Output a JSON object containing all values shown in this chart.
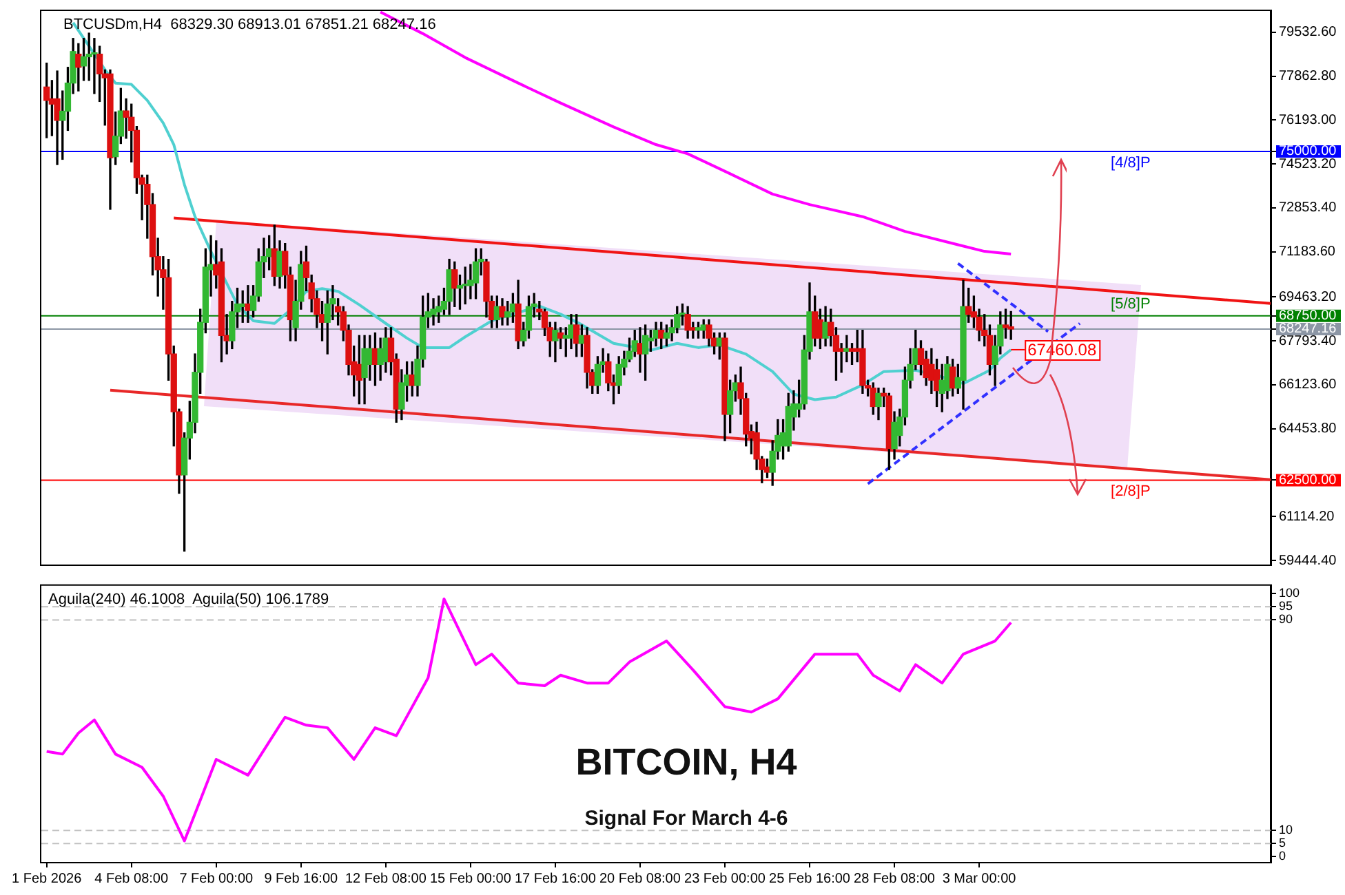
{
  "chart_data": [
    {
      "type": "candlestick",
      "title": "BTCUSDm,H4  68329.30 68913.01 67851.21 68247.16",
      "x": [
        "2026-02-01T16:00",
        "2026-02-01T20:00",
        "2026-02-02T00:00",
        "2026-02-02T04:00",
        "2026-02-02T08:00",
        "2026-02-02T12:00",
        "2026-02-02T16:00",
        "2026-02-02T20:00",
        "2026-02-03T00:00",
        "2026-02-03T04:00",
        "2026-02-03T08:00",
        "2026-02-03T12:00",
        "2026-02-03T16:00",
        "2026-02-03T20:00",
        "2026-02-04T00:00",
        "2026-02-04T04:00",
        "2026-02-04T08:00",
        "2026-02-04T12:00",
        "2026-02-04T16:00",
        "2026-02-04T20:00",
        "2026-02-05T00:00",
        "2026-02-05T04:00",
        "2026-02-05T08:00",
        "2026-02-05T12:00",
        "2026-02-05T16:00",
        "2026-02-05T20:00",
        "2026-02-06T00:00",
        "2026-02-06T04:00",
        "2026-02-06T08:00",
        "2026-02-06T12:00",
        "2026-02-06T16:00",
        "2026-02-06T20:00",
        "2026-02-07T00:00",
        "2026-02-07T04:00",
        "2026-02-07T08:00",
        "2026-02-07T12:00",
        "2026-02-07T16:00",
        "2026-02-07T20:00",
        "2026-02-08T00:00",
        "2026-02-08T04:00",
        "2026-02-08T08:00",
        "2026-02-08T12:00",
        "2026-02-08T16:00",
        "2026-02-08T20:00",
        "2026-02-09T00:00",
        "2026-02-09T04:00",
        "2026-02-09T08:00",
        "2026-02-09T12:00",
        "2026-02-09T16:00",
        "2026-02-09T20:00",
        "2026-02-10T00:00",
        "2026-02-10T04:00",
        "2026-02-10T08:00",
        "2026-02-10T12:00",
        "2026-02-10T16:00",
        "2026-02-10T20:00",
        "2026-02-11T00:00",
        "2026-02-11T04:00",
        "2026-02-11T08:00",
        "2026-02-11T12:00",
        "2026-02-11T16:00",
        "2026-02-11T20:00",
        "2026-02-12T00:00",
        "2026-02-12T04:00",
        "2026-02-12T08:00",
        "2026-02-12T12:00",
        "2026-02-12T16:00",
        "2026-02-12T20:00",
        "2026-02-13T00:00",
        "2026-02-13T04:00",
        "2026-02-13T08:00",
        "2026-02-13T12:00",
        "2026-02-13T16:00",
        "2026-02-13T20:00",
        "2026-02-14T00:00",
        "2026-02-14T04:00",
        "2026-02-14T08:00",
        "2026-02-14T12:00",
        "2026-02-14T16:00",
        "2026-02-14T20:00",
        "2026-02-15T00:00",
        "2026-02-15T04:00",
        "2026-02-15T08:00",
        "2026-02-15T12:00",
        "2026-02-15T16:00",
        "2026-02-15T20:00",
        "2026-02-16T00:00",
        "2026-02-16T04:00",
        "2026-02-16T08:00",
        "2026-02-16T12:00",
        "2026-02-16T16:00",
        "2026-02-16T20:00",
        "2026-02-17T00:00",
        "2026-02-17T04:00",
        "2026-02-17T08:00",
        "2026-02-17T12:00",
        "2026-02-17T16:00",
        "2026-02-17T20:00",
        "2026-02-18T00:00",
        "2026-02-18T04:00",
        "2026-02-18T08:00",
        "2026-02-18T12:00",
        "2026-02-18T16:00",
        "2026-02-18T20:00",
        "2026-02-19T00:00",
        "2026-02-19T04:00",
        "2026-02-19T08:00",
        "2026-02-19T12:00",
        "2026-02-19T16:00",
        "2026-02-19T20:00",
        "2026-02-20T00:00",
        "2026-02-20T04:00",
        "2026-02-20T08:00",
        "2026-02-20T12:00",
        "2026-02-20T16:00",
        "2026-02-20T20:00",
        "2026-02-21T00:00",
        "2026-02-21T04:00",
        "2026-02-21T08:00",
        "2026-02-21T12:00",
        "2026-02-21T16:00",
        "2026-02-21T20:00",
        "2026-02-22T00:00",
        "2026-02-22T04:00",
        "2026-02-22T08:00",
        "2026-02-22T12:00",
        "2026-02-22T16:00",
        "2026-02-22T20:00",
        "2026-02-23T00:00",
        "2026-02-23T04:00",
        "2026-02-23T08:00",
        "2026-02-23T12:00",
        "2026-02-23T16:00",
        "2026-02-23T20:00",
        "2026-02-24T00:00",
        "2026-02-24T04:00",
        "2026-02-24T08:00",
        "2026-02-24T12:00",
        "2026-02-24T16:00",
        "2026-02-24T20:00",
        "2026-02-25T00:00",
        "2026-02-25T04:00",
        "2026-02-25T08:00",
        "2026-02-25T12:00",
        "2026-02-25T16:00",
        "2026-02-25T20:00",
        "2026-02-26T00:00",
        "2026-02-26T04:00",
        "2026-02-26T08:00",
        "2026-02-26T12:00",
        "2026-02-26T16:00",
        "2026-02-26T20:00",
        "2026-02-27T00:00",
        "2026-02-27T04:00",
        "2026-02-27T08:00",
        "2026-02-27T12:00",
        "2026-02-27T16:00",
        "2026-02-27T20:00",
        "2026-02-28T00:00",
        "2026-02-28T04:00",
        "2026-02-28T08:00",
        "2026-02-28T12:00",
        "2026-02-28T16:00",
        "2026-02-28T20:00",
        "2026-03-01T00:00",
        "2026-03-01T04:00",
        "2026-03-01T08:00",
        "2026-03-01T12:00",
        "2026-03-01T16:00",
        "2026-03-01T20:00",
        "2026-03-02T00:00",
        "2026-03-02T04:00",
        "2026-03-02T08:00",
        "2026-03-02T12:00",
        "2026-03-02T16:00",
        "2026-03-02T20:00",
        "2026-03-03T00:00",
        "2026-03-03T04:00",
        "2026-03-03T08:00",
        "2026-03-03T12:00",
        "2026-03-03T16:00",
        "2026-03-03T20:00",
        "2026-03-04T00:00"
      ],
      "ohlc": [
        [
          77450,
          78360,
          75520,
          76940
        ],
        [
          77000,
          77700,
          75600,
          76800
        ],
        [
          77000,
          78060,
          74500,
          76180
        ],
        [
          76180,
          77300,
          74700,
          76530
        ],
        [
          76530,
          78200,
          75800,
          77600
        ],
        [
          77600,
          79300,
          77200,
          78800
        ],
        [
          78700,
          79100,
          77300,
          78200
        ],
        [
          78250,
          79300,
          77700,
          78600
        ],
        [
          78600,
          79500,
          77700,
          78700
        ],
        [
          78700,
          79300,
          77200,
          78750
        ],
        [
          78700,
          79000,
          76900,
          77950
        ],
        [
          77950,
          78100,
          76000,
          77800
        ],
        [
          77950,
          78100,
          72800,
          74760
        ],
        [
          74800,
          76500,
          74500,
          75580
        ],
        [
          75580,
          77400,
          75300,
          76540
        ],
        [
          76540,
          77000,
          75500,
          76300
        ],
        [
          76300,
          76800,
          74600,
          75800
        ],
        [
          75800,
          75950,
          73400,
          74000
        ],
        [
          74000,
          74100,
          72400,
          73750
        ],
        [
          73750,
          74100,
          71700,
          72980
        ],
        [
          72980,
          73400,
          70300,
          71000
        ],
        [
          71000,
          71700,
          69500,
          70500
        ],
        [
          70500,
          71000,
          69000,
          70200
        ],
        [
          70200,
          70900,
          66300,
          67300
        ],
        [
          67300,
          67600,
          63800,
          65100
        ],
        [
          65100,
          65200,
          62000,
          62700
        ],
        [
          62700,
          64300,
          59800,
          64100
        ],
        [
          64100,
          65500,
          63300,
          64700
        ],
        [
          64700,
          67300,
          64300,
          66600
        ],
        [
          66600,
          69000,
          65800,
          68500
        ],
        [
          68500,
          71300,
          68100,
          70600
        ],
        [
          70500,
          71800,
          69500,
          70700
        ],
        [
          70700,
          71600,
          69800,
          70300
        ],
        [
          70800,
          71300,
          67000,
          68000
        ],
        [
          68000,
          68800,
          67300,
          67800
        ],
        [
          67800,
          69300,
          67500,
          68900
        ],
        [
          68900,
          69800,
          68300,
          69200
        ],
        [
          69100,
          69700,
          68500,
          69200
        ],
        [
          69200,
          69900,
          68500,
          68950
        ],
        [
          68950,
          69900,
          68700,
          69500
        ],
        [
          69500,
          71300,
          69300,
          70800
        ],
        [
          70800,
          71700,
          70200,
          71000
        ],
        [
          71000,
          71800,
          70500,
          71300
        ],
        [
          71300,
          72200,
          69900,
          70250
        ],
        [
          70250,
          71600,
          69800,
          71200
        ],
        [
          71200,
          71500,
          69800,
          70300
        ],
        [
          70300,
          70600,
          67800,
          68600
        ],
        [
          68300,
          70100,
          67800,
          69300
        ],
        [
          69300,
          71200,
          69000,
          70700
        ],
        [
          70800,
          71400,
          69700,
          70200
        ],
        [
          70000,
          70300,
          68900,
          69400
        ],
        [
          69400,
          69700,
          68300,
          68800
        ],
        [
          68800,
          69300,
          67800,
          68500
        ],
        [
          68500,
          69700,
          67300,
          69200
        ],
        [
          69200,
          69900,
          68600,
          69400
        ],
        [
          69100,
          69400,
          68400,
          68900
        ],
        [
          68900,
          69100,
          67800,
          68200
        ],
        [
          68200,
          68400,
          66500,
          66900
        ],
        [
          67000,
          67600,
          65700,
          66500
        ],
        [
          66900,
          68000,
          65400,
          66300
        ],
        [
          66400,
          68000,
          65400,
          67500
        ],
        [
          66900,
          68000,
          66300,
          67500
        ],
        [
          67500,
          68100,
          66100,
          66900
        ],
        [
          66900,
          67900,
          66300,
          67500
        ],
        [
          67000,
          68300,
          66600,
          67900
        ],
        [
          67900,
          68300,
          66500,
          67000
        ],
        [
          67100,
          67300,
          64700,
          65200
        ],
        [
          65200,
          66700,
          64800,
          66200
        ],
        [
          66100,
          67000,
          65500,
          66500
        ],
        [
          66500,
          67000,
          65700,
          66100
        ],
        [
          66100,
          67600,
          65700,
          67100
        ],
        [
          67100,
          69500,
          66800,
          68700
        ],
        [
          68700,
          69600,
          68300,
          68900
        ],
        [
          68800,
          69400,
          68400,
          69000
        ],
        [
          68900,
          69500,
          68500,
          69100
        ],
        [
          69000,
          69800,
          68800,
          69300
        ],
        [
          69300,
          70900,
          68800,
          70500
        ],
        [
          70500,
          70800,
          69100,
          69800
        ],
        [
          69800,
          70300,
          69000,
          69900
        ],
        [
          69900,
          70600,
          69200,
          69950
        ],
        [
          69900,
          70700,
          69400,
          70100
        ],
        [
          70000,
          71300,
          69400,
          70800
        ],
        [
          70800,
          71300,
          70300,
          70900
        ],
        [
          70800,
          70900,
          68700,
          69300
        ],
        [
          69300,
          69500,
          68300,
          68600
        ],
        [
          68600,
          69500,
          68300,
          69100
        ],
        [
          69100,
          69400,
          68400,
          68700
        ],
        [
          68700,
          69300,
          68400,
          68900
        ],
        [
          68900,
          69600,
          68500,
          69200
        ],
        [
          69200,
          70100,
          67500,
          67800
        ],
        [
          67800,
          68500,
          67600,
          68200
        ],
        [
          68200,
          69500,
          67900,
          69100
        ],
        [
          69100,
          69600,
          68700,
          69200
        ],
        [
          69000,
          69300,
          68600,
          68900
        ],
        [
          68900,
          69000,
          68000,
          68300
        ],
        [
          68300,
          68500,
          67200,
          67800
        ],
        [
          67800,
          68500,
          67000,
          68200
        ],
        [
          68100,
          68300,
          67500,
          67900
        ],
        [
          67900,
          68300,
          67200,
          68000
        ],
        [
          67900,
          68800,
          67500,
          68400
        ],
        [
          68400,
          68800,
          67200,
          67700
        ],
        [
          67700,
          68400,
          67200,
          68000
        ],
        [
          68000,
          68300,
          66000,
          66600
        ],
        [
          66600,
          66700,
          65800,
          66100
        ],
        [
          66100,
          67200,
          65800,
          66900
        ],
        [
          66900,
          67500,
          66600,
          67000
        ],
        [
          67000,
          67300,
          65900,
          66200
        ],
        [
          66200,
          66500,
          65400,
          66100
        ],
        [
          66100,
          67200,
          65800,
          66900
        ],
        [
          66800,
          67400,
          66500,
          67100
        ],
        [
          67100,
          67900,
          67000,
          67400
        ],
        [
          67400,
          68200,
          67200,
          67800
        ],
        [
          67700,
          68300,
          66600,
          67300
        ],
        [
          67300,
          68400,
          66300,
          68000
        ],
        [
          67800,
          68200,
          67400,
          67900
        ],
        [
          67900,
          68500,
          67600,
          68200
        ],
        [
          68200,
          68500,
          67500,
          67900
        ],
        [
          67900,
          68400,
          67600,
          68100
        ],
        [
          68100,
          68600,
          67800,
          68300
        ],
        [
          68300,
          69100,
          68100,
          68800
        ],
        [
          68800,
          69200,
          68400,
          68850
        ],
        [
          68800,
          69100,
          67900,
          68200
        ],
        [
          68300,
          68500,
          67900,
          68200
        ],
        [
          68200,
          68500,
          67900,
          68300
        ],
        [
          68200,
          68600,
          67900,
          68400
        ],
        [
          68400,
          68600,
          67600,
          67900
        ],
        [
          67900,
          68100,
          67300,
          67600
        ],
        [
          67600,
          68100,
          67100,
          67900
        ],
        [
          67900,
          68100,
          64000,
          65000
        ],
        [
          65000,
          66300,
          64300,
          65900
        ],
        [
          65900,
          66500,
          65500,
          66200
        ],
        [
          66200,
          66800,
          65000,
          65600
        ],
        [
          65600,
          65800,
          63800,
          64250
        ],
        [
          64350,
          64600,
          63500,
          64100
        ],
        [
          64300,
          64700,
          62900,
          63300
        ],
        [
          63300,
          63400,
          62400,
          62900
        ],
        [
          63000,
          63300,
          62600,
          62800
        ],
        [
          62800,
          64000,
          62300,
          63600
        ],
        [
          63600,
          64800,
          63300,
          64200
        ],
        [
          63800,
          64800,
          63300,
          64300
        ],
        [
          63800,
          65800,
          63600,
          65300
        ],
        [
          64900,
          65900,
          64400,
          65400
        ],
        [
          65200,
          66300,
          64900,
          65400
        ],
        [
          65400,
          68000,
          65200,
          67450
        ],
        [
          67400,
          70000,
          67100,
          68900
        ],
        [
          68900,
          69500,
          67600,
          67900
        ],
        [
          68600,
          69000,
          67500,
          67900
        ],
        [
          67900,
          69100,
          67600,
          68500
        ],
        [
          68500,
          69000,
          67600,
          68000
        ],
        [
          68000,
          68300,
          66300,
          67400
        ],
        [
          67500,
          67700,
          66600,
          67400
        ],
        [
          67400,
          68000,
          67000,
          67500
        ],
        [
          67500,
          67700,
          66900,
          67400
        ],
        [
          67500,
          68200,
          67000,
          67400
        ],
        [
          67500,
          68200,
          65800,
          66100
        ],
        [
          66100,
          66300,
          65700,
          66000
        ],
        [
          66000,
          66200,
          65000,
          65300
        ],
        [
          65300,
          66000,
          64800,
          65800
        ],
        [
          65800,
          66000,
          65300,
          65700
        ],
        [
          65700,
          65800,
          62900,
          63700
        ],
        [
          63700,
          65100,
          63300,
          64700
        ],
        [
          64200,
          65200,
          63800,
          64900
        ],
        [
          64900,
          66800,
          64600,
          66300
        ],
        [
          66300,
          67500,
          66000,
          66900
        ],
        [
          66900,
          68200,
          66700,
          67500
        ],
        [
          67500,
          67800,
          66500,
          66900
        ],
        [
          67100,
          67400,
          66100,
          66400
        ],
        [
          66900,
          67500,
          65800,
          66300
        ],
        [
          66700,
          67100,
          65300,
          65900
        ],
        [
          65800,
          66900,
          65100,
          66300
        ],
        [
          65900,
          67200,
          65600,
          66900
        ],
        [
          66800,
          67100,
          65700,
          66000
        ],
        [
          66000,
          66900,
          65800,
          66400
        ],
        [
          66300,
          70100,
          65200,
          69100
        ],
        [
          69100,
          69800,
          68500,
          68800
        ],
        [
          68900,
          69500,
          68300,
          68700
        ],
        [
          68700,
          69000,
          67800,
          68200
        ],
        [
          68200,
          68800,
          67600,
          68000
        ],
        [
          68000,
          68400,
          66500,
          66900
        ],
        [
          66900,
          68000,
          66100,
          67600
        ],
        [
          67600,
          68900,
          67300,
          68400
        ],
        [
          68400,
          69000,
          67900,
          68300
        ],
        [
          68329.3,
          68913.01,
          67851.21,
          68247.16
        ]
      ],
      "series": [
        {
          "type": "line",
          "color": "#4fd0d0",
          "x": [
            "2026-02-02T12:00",
            "2026-02-03T12:00",
            "2026-02-03T20:00",
            "2026-02-04T08:00",
            "2026-02-04T20:00",
            "2026-02-05T08:00",
            "2026-02-05T16:00",
            "2026-02-06T00:00",
            "2026-02-06T08:00",
            "2026-02-06T20:00",
            "2026-02-07T08:00",
            "2026-02-07T16:00",
            "2026-02-08T04:00",
            "2026-02-08T20:00",
            "2026-02-09T08:00",
            "2026-02-09T20:00",
            "2026-02-10T08:00",
            "2026-02-10T20:00",
            "2026-02-11T12:00",
            "2026-02-12T08:00",
            "2026-02-13T00:00",
            "2026-02-13T12:00",
            "2026-02-14T08:00",
            "2026-02-14T20:00",
            "2026-02-15T16:00",
            "2026-02-16T08:00",
            "2026-02-17T04:00",
            "2026-02-17T20:00",
            "2026-02-18T12:00",
            "2026-02-19T12:00",
            "2026-02-20T16:00",
            "2026-02-21T12:00",
            "2026-02-22T04:00",
            "2026-02-22T20:00",
            "2026-02-23T16:00",
            "2026-02-24T12:00",
            "2026-02-25T04:00",
            "2026-02-25T20:00",
            "2026-02-26T12:00",
            "2026-02-27T08:00",
            "2026-02-28T00:00",
            "2026-03-01T00:00",
            "2026-03-01T20:00",
            "2026-03-02T12:00",
            "2026-03-03T08:00",
            "2026-03-03T16:00",
            "2026-03-04T00:00"
          ],
          "values": [
            79900,
            78110,
            77600,
            77550,
            76940,
            76080,
            75260,
            73740,
            72520,
            71200,
            69980,
            69170,
            68560,
            68460,
            68970,
            69680,
            69780,
            69680,
            69170,
            68460,
            67900,
            67540,
            67540,
            67950,
            68560,
            68810,
            69120,
            68810,
            68410,
            67700,
            67440,
            67700,
            67540,
            67640,
            67290,
            66630,
            65770,
            65560,
            65660,
            66120,
            66630,
            66680,
            66430,
            66170,
            66680,
            67140,
            67460.08
          ]
        },
        {
          "type": "line",
          "color": "#ff00ff",
          "x": [
            "2026-02-12T04:00",
            "2026-02-13T12:00",
            "2026-02-14T20:00",
            "2026-02-16T12:00",
            "2026-02-17T20:00",
            "2026-02-19T12:00",
            "2026-02-20T20:00",
            "2026-02-21T20:00",
            "2026-02-23T04:00",
            "2026-02-24T12:00",
            "2026-02-25T16:00",
            "2026-02-27T08:00",
            "2026-02-28T16:00",
            "2026-03-02T08:00",
            "2026-03-03T04:00",
            "2026-03-04T00:00"
          ],
          "values": [
            80300,
            79480,
            78570,
            77600,
            76840,
            75930,
            75260,
            74910,
            74150,
            73380,
            72980,
            72520,
            71960,
            71450,
            71200,
            71100
          ]
        },
        {
          "type": "line",
          "color": "#f01414",
          "x": [
            "2026-02-05T16:00",
            "2026-03-12T04:00"
          ],
          "values": [
            72470,
            69220
          ]
        },
        {
          "type": "line",
          "color": "#e82828",
          "x": [
            "2026-02-03T16:00",
            "2026-03-12T04:00"
          ],
          "values": [
            65920,
            62520
          ]
        },
        {
          "type": "line",
          "color": "#3030ff",
          "line_style": "dashed",
          "x": [
            "2026-02-27T12:00",
            "2026-03-06T04:00"
          ],
          "values": [
            62360,
            68460
          ]
        },
        {
          "type": "line",
          "color": "#3030ff",
          "line_style": "dashed",
          "x": [
            "2026-03-02T08:00",
            "2026-03-05T04:00"
          ],
          "values": [
            70740,
            68150
          ]
        }
      ],
      "xlim": [
        "2026-02-01T12:00",
        "2026-03-12T04:00"
      ],
      "tick_labels": "y",
      "marker": "none",
      "ylim": [
        59290,
        80340
      ],
      "yticks": [
        {
          "value": 79532.6,
          "label": "79532.60"
        },
        {
          "value": 77862.8,
          "label": "77862.80"
        },
        {
          "value": 76193,
          "label": "76193.00"
        },
        {
          "value": 75000,
          "label": "75000.00"
        },
        {
          "value": 74523.2,
          "label": "74523.20"
        },
        {
          "value": 72853.4,
          "label": "72853.40"
        },
        {
          "value": 71183.6,
          "label": "71183.60"
        },
        {
          "value": 69463.2,
          "label": "69463.20"
        },
        {
          "value": 68750,
          "label": "68750.00"
        },
        {
          "value": 68247.16,
          "label": "68247.16"
        },
        {
          "value": 67793.4,
          "label": "67793.40"
        },
        {
          "value": 66123.6,
          "label": "66123.60"
        },
        {
          "value": 64453.8,
          "label": "64453.80"
        },
        {
          "value": 62500,
          "label": "62500.00"
        },
        {
          "value": 61114.2,
          "label": "61114.20"
        },
        {
          "value": 59444.4,
          "label": "59444.40"
        }
      ],
      "ref_lines": [
        {
          "axis": "y",
          "value": 75000,
          "label": "[4/8]P",
          "color": "#0000ff"
        },
        {
          "axis": "y",
          "value": 68750,
          "label": "[5/8]P",
          "color": "#008000"
        },
        {
          "axis": "y",
          "value": 62500,
          "label": "[2/8]P",
          "color": "#ff0000"
        },
        {
          "axis": "y",
          "value": 68247.16,
          "color": "#8c96a5"
        }
      ],
      "annotations": [
        {
          "text": "67460.08",
          "x": "2026-03-04T00:00",
          "y": 67460.08
        }
      ],
      "legend": false,
      "grid": false
    },
    {
      "type": "line",
      "title": "BITCOIN, H4",
      "subtitle": "Signal For March 4-6",
      "series": [
        {
          "color": "#ff00ff",
          "x": [
            "2026-02-01T16:00",
            "2026-02-02T04:00",
            "2026-02-02T16:00",
            "2026-02-03T04:00",
            "2026-02-03T20:00",
            "2026-02-04T16:00",
            "2026-02-05T08:00",
            "2026-02-06T00:00",
            "2026-02-07T00:00",
            "2026-02-08T00:00",
            "2026-02-09T00:00",
            "2026-02-09T04:00",
            "2026-02-09T20:00",
            "2026-02-10T12:00",
            "2026-02-11T08:00",
            "2026-02-12T00:00",
            "2026-02-12T16:00",
            "2026-02-13T16:00",
            "2026-02-14T04:00",
            "2026-02-15T04:00",
            "2026-02-15T16:00",
            "2026-02-16T12:00",
            "2026-02-17T08:00",
            "2026-02-17T20:00",
            "2026-02-18T16:00",
            "2026-02-19T08:00",
            "2026-02-20T00:00",
            "2026-02-21T04:00",
            "2026-02-22T00:00",
            "2026-02-23T00:00",
            "2026-02-23T20:00",
            "2026-02-24T16:00",
            "2026-02-25T20:00",
            "2026-02-27T04:00",
            "2026-02-27T16:00",
            "2026-02-28T12:00",
            "2026-03-01T00:00",
            "2026-03-01T20:00",
            "2026-03-02T12:00",
            "2026-03-03T12:00",
            "2026-03-04T00:00"
          ],
          "values": [
            40,
            39,
            47,
            52,
            39,
            34,
            23,
            6,
            37,
            31,
            50,
            53,
            50,
            49,
            37,
            49,
            46,
            68,
            98,
            73,
            77,
            66,
            65,
            69,
            66,
            66,
            74,
            82,
            71,
            57,
            55,
            60,
            77,
            77,
            69,
            63,
            73,
            66,
            77,
            82,
            89
          ]
        }
      ],
      "xlim": [
        "2026-02-01T12:00",
        "2026-03-12T04:00"
      ],
      "xticks": [
        {
          "value": "2026-02-01T16:00",
          "label": "1 Feb 2026"
        },
        {
          "value": "2026-02-04T08:00",
          "label": "4 Feb 08:00"
        },
        {
          "value": "2026-02-07T00:00",
          "label": "7 Feb 00:00"
        },
        {
          "value": "2026-02-09T16:00",
          "label": "9 Feb 16:00"
        },
        {
          "value": "2026-02-12T08:00",
          "label": "12 Feb 08:00"
        },
        {
          "value": "2026-02-15T00:00",
          "label": "15 Feb 00:00"
        },
        {
          "value": "2026-02-17T16:00",
          "label": "17 Feb 16:00"
        },
        {
          "value": "2026-02-20T08:00",
          "label": "20 Feb 08:00"
        },
        {
          "value": "2026-02-23T00:00",
          "label": "23 Feb 00:00"
        },
        {
          "value": "2026-02-25T16:00",
          "label": "25 Feb 16:00"
        },
        {
          "value": "2026-02-28T08:00",
          "label": "28 Feb 08:00"
        },
        {
          "value": "2026-03-03T00:00",
          "label": "3 Mar 00:00"
        }
      ],
      "ylim": [
        -2,
        103
      ],
      "yticks": [
        100,
        95,
        90,
        10,
        5,
        0
      ],
      "marker": "none",
      "ref_lines": [
        {
          "axis": "y",
          "value": 95,
          "color": "#c0c0c0",
          "line_style": "dashed"
        },
        {
          "axis": "y",
          "value": 90,
          "color": "#c0c0c0",
          "line_style": "dashed"
        },
        {
          "axis": "y",
          "value": 10,
          "color": "#c0c0c0",
          "line_style": "dashed"
        },
        {
          "axis": "y",
          "value": 5,
          "color": "#c0c0c0",
          "line_style": "dashed"
        }
      ],
      "annotations": [
        "Aguila(240) 46.1008  Aguila(50) 106.1789"
      ],
      "legend": false,
      "grid": false
    }
  ]
}
